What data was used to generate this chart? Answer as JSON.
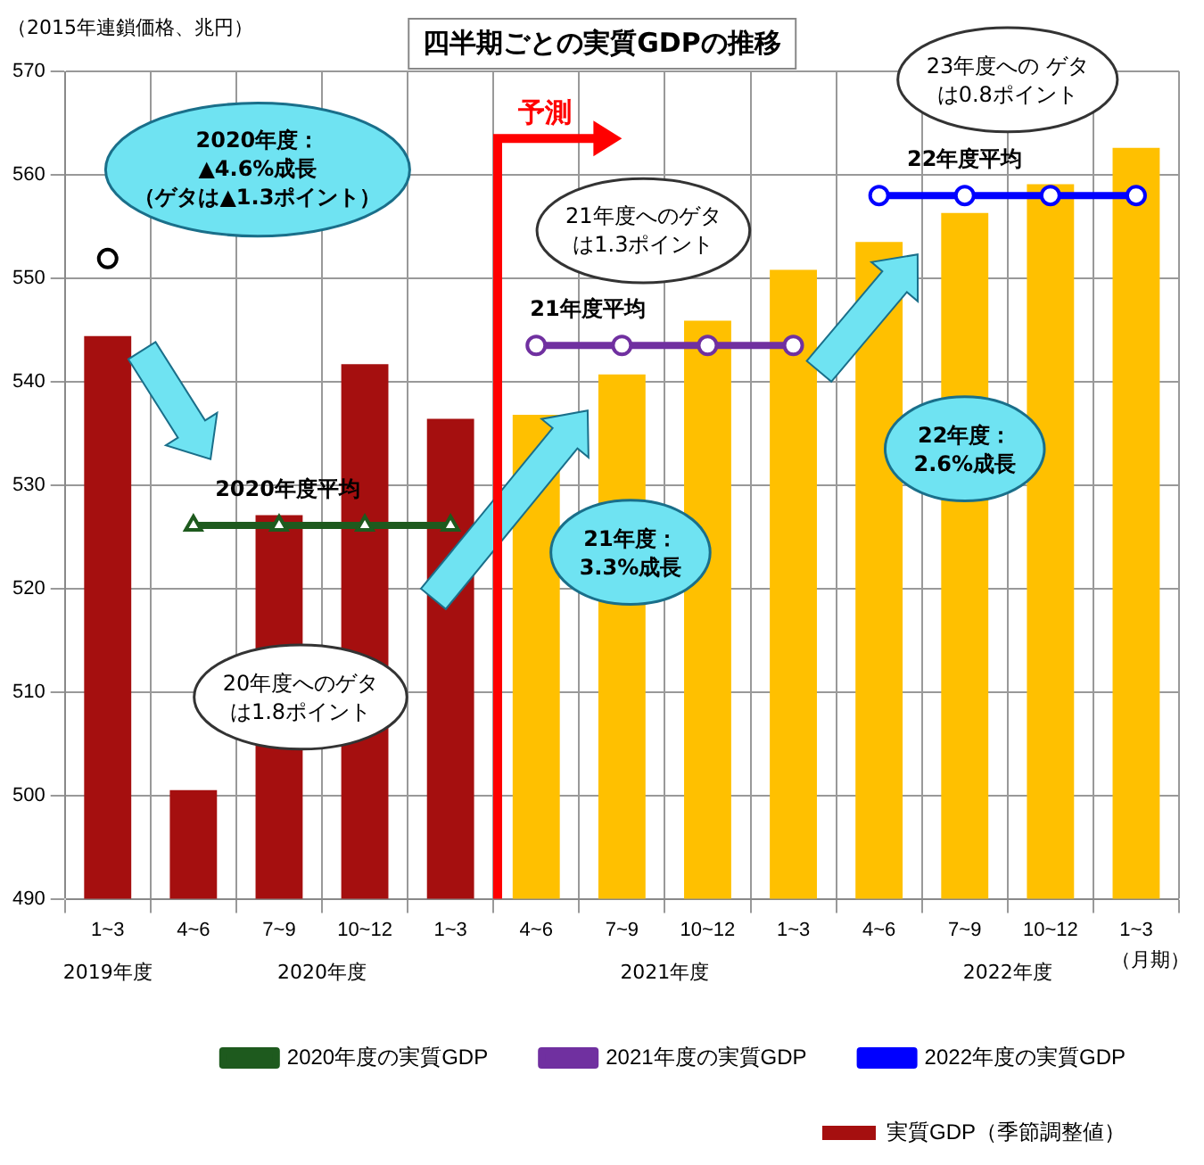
{
  "chart_data": {
    "type": "bar",
    "title": "四半期ごとの実質GDPの推移",
    "ylabel": "（2015年連鎖価格、兆円）",
    "categories": [
      "1~3",
      "4~6",
      "7~9",
      "10~12",
      "1~3",
      "4~6",
      "7~9",
      "10~12",
      "1~3",
      "4~6",
      "7~9",
      "10~12",
      "1~3"
    ],
    "series": [
      {
        "type": "bar",
        "name": "実質GDP（季節調整値）",
        "colors": [
          "#a50f0f",
          "#a50f0f",
          "#a50f0f",
          "#a50f0f",
          "#a50f0f",
          "#ffc000",
          "#ffc000",
          "#ffc000",
          "#ffc000",
          "#ffc000",
          "#ffc000",
          "#ffc000",
          "#ffc000"
        ],
        "values": [
          544.4,
          500.5,
          527.1,
          541.7,
          536.4,
          536.8,
          540.7,
          545.9,
          550.8,
          553.5,
          556.3,
          559.1,
          562.6
        ]
      },
      {
        "type": "line",
        "color": "#000000",
        "marker": "circle",
        "values": [
          551.9,
          null,
          null,
          null,
          null,
          null,
          null,
          null,
          null,
          null,
          null,
          null,
          null
        ]
      },
      {
        "type": "line",
        "name": "2020年度の実質GDP",
        "color": "#1e5a1e",
        "marker": "triangle",
        "values": [
          null,
          526.1,
          526.1,
          526.1,
          526.1,
          null,
          null,
          null,
          null,
          null,
          null,
          null,
          null
        ]
      },
      {
        "type": "line",
        "name": "2021年度の実質GDP",
        "color": "#7030a0",
        "marker": "circle",
        "values": [
          null,
          null,
          null,
          null,
          null,
          543.5,
          543.5,
          543.5,
          543.5,
          null,
          null,
          null,
          null
        ]
      },
      {
        "type": "line",
        "name": "2022年度の実質GDP",
        "color": "#0000ff",
        "marker": "circle",
        "values": [
          null,
          null,
          null,
          null,
          null,
          null,
          null,
          null,
          null,
          558.0,
          558.0,
          558.0,
          558.0
        ]
      }
    ],
    "ylim": [
      490,
      570
    ],
    "yticks": [
      490,
      500,
      510,
      520,
      530,
      540,
      550,
      560,
      570
    ],
    "grid": true,
    "legend": "bottom right",
    "annotations": [
      "予測",
      "2020年度：▲4.6%成長（ゲタは▲1.3ポイント）",
      "20年度へのゲタは1.8ポイント",
      "21年度へのゲタは1.3ポイント",
      "23年度への ゲタは0.8ポイント",
      "21年度：3.3%成長",
      "22年度：2.6%成長",
      "2020年度平均",
      "21年度平均",
      "22年度平均",
      "2019年度",
      "2020年度",
      "2021年度",
      "2022年度",
      "（月期）"
    ]
  }
}
